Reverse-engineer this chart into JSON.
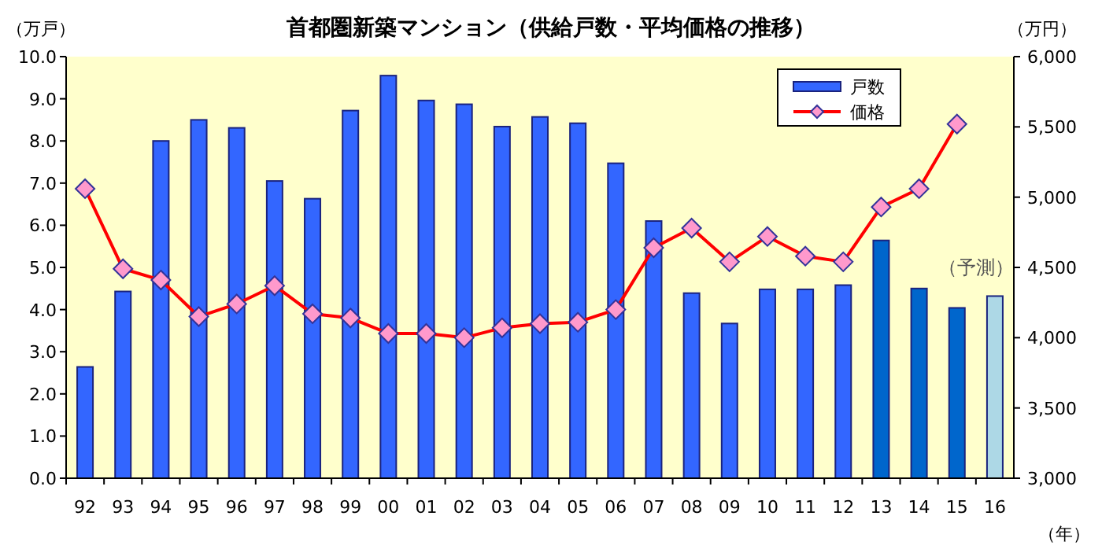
{
  "chart_data": {
    "type": "bar",
    "title": "首都圏新築マンション（供給戸数・平均価格の推移）",
    "ylabel": "（万戸）",
    "y2label": "（万円）",
    "xlabel": "（年）",
    "categories": [
      "92",
      "93",
      "94",
      "95",
      "96",
      "97",
      "98",
      "99",
      "00",
      "01",
      "02",
      "03",
      "04",
      "05",
      "06",
      "07",
      "08",
      "09",
      "10",
      "11",
      "12",
      "13",
      "14",
      "15",
      "16"
    ],
    "series": [
      {
        "name": "戸数",
        "color": "#3366ff",
        "colors": [
          "#3366ff",
          "#3366ff",
          "#3366ff",
          "#3366ff",
          "#3366ff",
          "#3366ff",
          "#3366ff",
          "#3366ff",
          "#3366ff",
          "#3366ff",
          "#3366ff",
          "#3366ff",
          "#3366ff",
          "#3366ff",
          "#3366ff",
          "#3366ff",
          "#3366ff",
          "#3366ff",
          "#3366ff",
          "#3366ff",
          "#3366ff",
          "#0066cc",
          "#0066cc",
          "#0066cc",
          "#add8e6"
        ],
        "values": [
          2.64,
          4.43,
          8.0,
          8.5,
          8.31,
          7.05,
          6.63,
          8.72,
          9.55,
          8.96,
          8.87,
          8.34,
          8.57,
          8.42,
          7.47,
          6.1,
          4.39,
          3.67,
          4.48,
          4.48,
          4.58,
          5.64,
          4.5,
          4.04,
          4.32
        ]
      },
      {
        "name": "価格",
        "type": "line",
        "axis": "y2",
        "color": "#ff0000",
        "marker": "diamond",
        "values": [
          5060,
          4490,
          4410,
          4150,
          4240,
          4370,
          4170,
          4140,
          4030,
          4030,
          4000,
          4070,
          4100,
          4110,
          4200,
          4640,
          4780,
          4540,
          4720,
          4580,
          4540,
          4930,
          5060,
          5520,
          null
        ]
      }
    ],
    "ylim": [
      0,
      10
    ],
    "yticks": [
      {
        "value": 0,
        "label": "0.0"
      },
      {
        "value": 1,
        "label": "1.0"
      },
      {
        "value": 2,
        "label": "2.0"
      },
      {
        "value": 3,
        "label": "3.0"
      },
      {
        "value": 4,
        "label": "4.0"
      },
      {
        "value": 5,
        "label": "5.0"
      },
      {
        "value": 6,
        "label": "6.0"
      },
      {
        "value": 7,
        "label": "7.0"
      },
      {
        "value": 8,
        "label": "8.0"
      },
      {
        "value": 9,
        "label": "9.0"
      },
      {
        "value": 10,
        "label": "10.0"
      }
    ],
    "y2lim": [
      3000,
      6000
    ],
    "y2ticks": [
      {
        "value": 3000,
        "label": "3,000"
      },
      {
        "value": 3500,
        "label": "3,500"
      },
      {
        "value": 4000,
        "label": "4,000"
      },
      {
        "value": 4500,
        "label": "4,500"
      },
      {
        "value": 5000,
        "label": "5,000"
      },
      {
        "value": 5500,
        "label": "5,500"
      },
      {
        "value": 6000,
        "label": "6,000"
      }
    ],
    "annotations": [
      {
        "text": "（予測）",
        "x": "16",
        "y": 4.32
      }
    ],
    "legend": "top right",
    "grid": false
  }
}
